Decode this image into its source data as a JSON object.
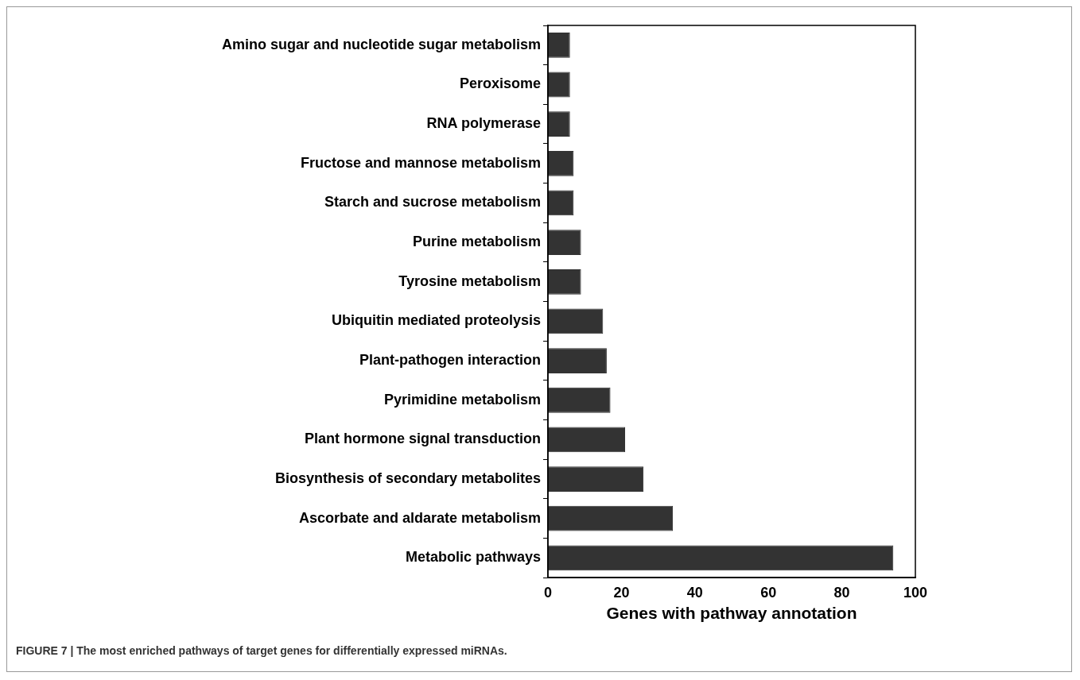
{
  "chart_data": {
    "type": "bar",
    "orientation": "horizontal",
    "xlabel": "Genes with pathway annotation",
    "categories": [
      "Amino sugar and nucleotide sugar metabolism",
      "Peroxisome",
      "RNA polymerase",
      "Fructose and mannose metabolism",
      "Starch and sucrose metabolism",
      "Purine metabolism",
      "Tyrosine metabolism",
      "Ubiquitin mediated proteolysis",
      "Plant-pathogen interaction",
      "Pyrimidine metabolism",
      "Plant hormone signal transduction",
      "Biosynthesis of secondary metabolites",
      "Ascorbate and aldarate metabolism",
      "Metabolic pathways"
    ],
    "values": [
      6,
      6,
      6,
      7,
      7,
      9,
      9,
      15,
      16,
      17,
      21,
      26,
      34,
      94
    ],
    "color": "#333333",
    "xlim": [
      0,
      100
    ],
    "xticks": [
      0,
      20,
      40,
      60,
      80,
      100
    ],
    "grid": false,
    "legend": false,
    "annotations": [
      "FIGURE 7 | The most enriched pathways of target genes for differentially expressed miRNAs."
    ]
  }
}
